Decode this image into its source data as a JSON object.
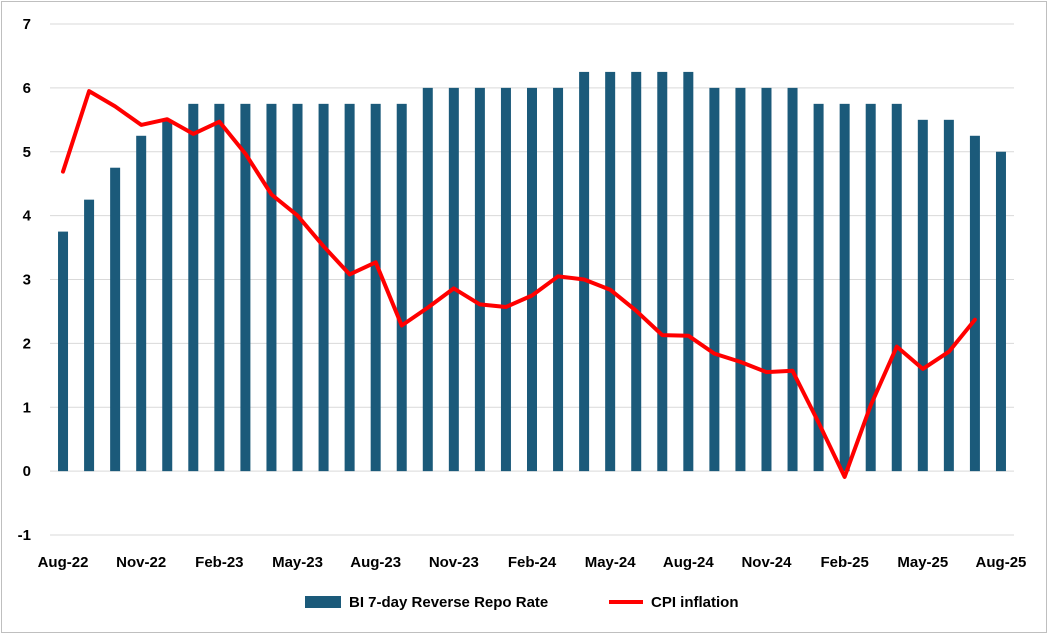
{
  "chart_data": {
    "type": "bar",
    "title": "",
    "xlabel": "",
    "ylabel": "",
    "ylim": [
      -1,
      7
    ],
    "yticks": [
      -1,
      0,
      1,
      2,
      3,
      4,
      5,
      6,
      7
    ],
    "grid": "horizontal",
    "legend_position": "bottom",
    "categories": [
      "Aug-22",
      "Sep-22",
      "Oct-22",
      "Nov-22",
      "Dec-22",
      "Jan-23",
      "Feb-23",
      "Mar-23",
      "Apr-23",
      "May-23",
      "Jun-23",
      "Jul-23",
      "Aug-23",
      "Sep-23",
      "Oct-23",
      "Nov-23",
      "Dec-23",
      "Jan-24",
      "Feb-24",
      "Mar-24",
      "Apr-24",
      "May-24",
      "Jun-24",
      "Jul-24",
      "Aug-24",
      "Sep-24",
      "Oct-24",
      "Nov-24",
      "Dec-24",
      "Jan-25",
      "Feb-25",
      "Mar-25",
      "Apr-25",
      "May-25",
      "Jun-25",
      "Jul-25",
      "Aug-25"
    ],
    "x_tick_labels": [
      "Aug-22",
      "Nov-22",
      "Feb-23",
      "May-23",
      "Aug-23",
      "Nov-23",
      "Feb-24",
      "May-24",
      "Aug-24",
      "Nov-24",
      "Feb-25",
      "May-25",
      "Aug-25"
    ],
    "series": [
      {
        "name": "BI 7-day Reverse Repo Rate",
        "type": "bar",
        "color": "#1b5a7a",
        "values": [
          3.75,
          4.25,
          4.75,
          5.25,
          5.5,
          5.75,
          5.75,
          5.75,
          5.75,
          5.75,
          5.75,
          5.75,
          5.75,
          5.75,
          6.0,
          6.0,
          6.0,
          6.0,
          6.0,
          6.0,
          6.25,
          6.25,
          6.25,
          6.25,
          6.25,
          6.0,
          6.0,
          6.0,
          6.0,
          5.75,
          5.75,
          5.75,
          5.75,
          5.5,
          5.5,
          5.25,
          5.0
        ]
      },
      {
        "name": "CPI inflation",
        "type": "line",
        "color": "#ff0000",
        "values": [
          4.69,
          5.95,
          5.71,
          5.42,
          5.51,
          5.28,
          5.47,
          4.97,
          4.33,
          4.0,
          3.52,
          3.08,
          3.27,
          2.28,
          2.56,
          2.86,
          2.61,
          2.57,
          2.75,
          3.05,
          3.0,
          2.84,
          2.51,
          2.13,
          2.12,
          1.84,
          1.71,
          1.55,
          1.57,
          0.76,
          -0.09,
          1.03,
          1.95,
          1.6,
          1.87,
          2.37,
          null
        ]
      }
    ]
  }
}
